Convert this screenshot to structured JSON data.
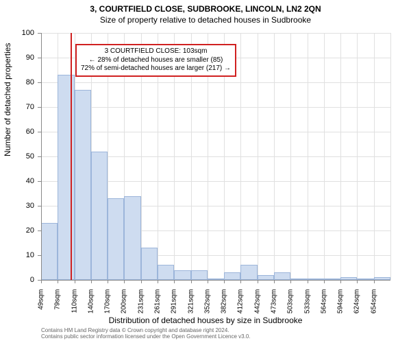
{
  "title": "3, COURTFIELD CLOSE, SUDBROOKE, LINCOLN, LN2 2QN",
  "subtitle": "Size of property relative to detached houses in Sudbrooke",
  "chart": {
    "type": "histogram",
    "ylabel": "Number of detached properties",
    "xlabel": "Distribution of detached houses by size in Sudbrooke",
    "ylim": [
      0,
      100
    ],
    "ytick_step": 10,
    "bar_fill": "#cedcf0",
    "bar_border": "#9cb5da",
    "background": "#ffffff",
    "grid_color": "#e0e0e0",
    "axis_color": "#888888",
    "marker_color": "#d02020",
    "marker_x_value": 103,
    "x_start": 49,
    "x_bin_width": 30.3,
    "annotation": {
      "line1": "3 COURTFIELD CLOSE: 103sqm",
      "line2": "← 28% of detached houses are smaller (85)",
      "line3": "72% of semi-detached houses are larger (217) →",
      "border_color": "#d02020"
    },
    "bins": [
      {
        "label": "49sqm",
        "value": 23,
        "show_label": true
      },
      {
        "label": "79sqm",
        "value": 83,
        "show_label": true
      },
      {
        "label": "110sqm",
        "value": 77,
        "show_label": true
      },
      {
        "label": "140sqm",
        "value": 52,
        "show_label": true
      },
      {
        "label": "170sqm",
        "value": 33,
        "show_label": true
      },
      {
        "label": "200sqm",
        "value": 34,
        "show_label": true
      },
      {
        "label": "231sqm",
        "value": 13,
        "show_label": true
      },
      {
        "label": "261sqm",
        "value": 6,
        "show_label": true
      },
      {
        "label": "291sqm",
        "value": 4,
        "show_label": true
      },
      {
        "label": "321sqm",
        "value": 4,
        "show_label": true
      },
      {
        "label": "352sqm",
        "value": 0,
        "show_label": true
      },
      {
        "label": "382sqm",
        "value": 3,
        "show_label": true
      },
      {
        "label": "412sqm",
        "value": 6,
        "show_label": true
      },
      {
        "label": "442sqm",
        "value": 2,
        "show_label": true
      },
      {
        "label": "473sqm",
        "value": 3,
        "show_label": true
      },
      {
        "label": "503sqm",
        "value": 0,
        "show_label": true
      },
      {
        "label": "533sqm",
        "value": 0,
        "show_label": true
      },
      {
        "label": "564sqm",
        "value": 0,
        "show_label": true
      },
      {
        "label": "594sqm",
        "value": 1,
        "show_label": true
      },
      {
        "label": "624sqm",
        "value": 0,
        "show_label": true
      },
      {
        "label": "654sqm",
        "value": 1,
        "show_label": true
      }
    ]
  },
  "footer": {
    "line1": "Contains HM Land Registry data © Crown copyright and database right 2024.",
    "line2": "Contains public sector information licensed under the Open Government Licence v3.0."
  }
}
